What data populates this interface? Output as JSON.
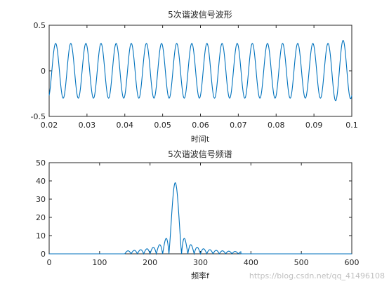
{
  "chart_data": [
    {
      "type": "line",
      "title": "5次谐波信号波形",
      "xlabel": "时间t",
      "ylabel": "",
      "xlim": [
        0.02,
        0.1
      ],
      "ylim": [
        -0.5,
        0.5
      ],
      "xticks": [
        "0.02",
        "0.03",
        "0.04",
        "0.05",
        "0.06",
        "0.07",
        "0.08",
        "0.09",
        "0.1"
      ],
      "yticks": [
        "0.5",
        "0",
        "-0.5"
      ],
      "grid": false,
      "series": [
        {
          "frequency_hz": 250,
          "amplitude": 0.3,
          "x_range": [
            0.02,
            0.1
          ],
          "color": "#0072BD"
        }
      ]
    },
    {
      "type": "line",
      "title": "5次谐波信号频谱",
      "xlabel": "频率f",
      "ylabel": "",
      "xlim": [
        0,
        600
      ],
      "ylim": [
        0,
        50
      ],
      "xticks": [
        "0",
        "100",
        "200",
        "300",
        "400",
        "500",
        "600"
      ],
      "yticks": [
        "50",
        "40",
        "30",
        "20",
        "10",
        "0"
      ],
      "grid": false,
      "series": [
        {
          "peak_frequency": 250,
          "peak_value": 39,
          "x_range": [
            0,
            600
          ],
          "color": "#0072BD"
        }
      ]
    }
  ],
  "watermark": "https://blog.csdn.net/qq_41496108"
}
